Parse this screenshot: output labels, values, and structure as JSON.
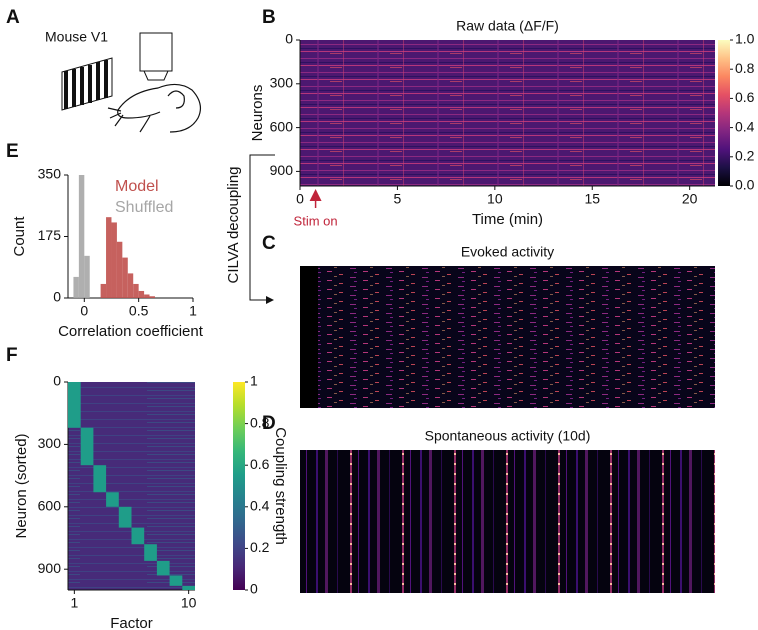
{
  "panel_labels": [
    "A",
    "B",
    "C",
    "D",
    "E",
    "F"
  ],
  "schematic_label": "Mouse V1",
  "decoupling_label": "CILVA decoupling",
  "chart_data": [
    {
      "type": "heatmap",
      "title": "Raw data (ΔF/F)",
      "xlabel": "Time (min)",
      "ylabel": "Neurons",
      "xlim": [
        0,
        21.3
      ],
      "xticks": [
        0,
        5,
        10,
        15,
        20
      ],
      "ylim": [
        0,
        1000
      ],
      "yticks": [
        0,
        300,
        600,
        900
      ],
      "colormap": "magma",
      "clim": [
        0,
        1
      ],
      "cticks": [
        {
          "value": 0,
          "label": "0.0"
        },
        {
          "value": 0.2,
          "label": "0.2"
        },
        {
          "value": 0.4,
          "label": "0.4"
        },
        {
          "value": 0.6,
          "label": "0.6"
        },
        {
          "value": 0.8,
          "label": "0.8"
        },
        {
          "value": 1,
          "label": "1.0"
        }
      ],
      "annotation": {
        "text": "Stim on",
        "x": 0.8,
        "color": "#c0243a"
      }
    },
    {
      "type": "heatmap",
      "title": "Evoked activity",
      "colormap": "magma"
    },
    {
      "type": "heatmap",
      "title": "Spontaneous activity (10d)",
      "colormap": "magma"
    },
    {
      "type": "histogram",
      "xlabel": "Correlation coefficient",
      "ylabel": "Count",
      "bins": [
        -0.1,
        -0.05,
        0,
        0.05,
        0.1,
        0.15,
        0.2,
        0.25,
        0.3,
        0.35,
        0.4,
        0.45,
        0.5,
        0.55,
        0.6,
        0.65
      ],
      "series": [
        {
          "name": "Model",
          "color": "#c0504d",
          "values": [
            0,
            0,
            0,
            0,
            0,
            40,
            230,
            215,
            160,
            115,
            70,
            40,
            20,
            10,
            5
          ]
        },
        {
          "name": "Shuffled",
          "color": "#a6a6a6",
          "values": [
            60,
            350,
            120,
            0,
            0,
            0,
            0,
            0,
            0,
            0,
            0,
            0,
            0,
            0,
            0
          ]
        }
      ],
      "xlim": [
        -0.15,
        1
      ],
      "xticks": [
        0,
        0.5,
        1
      ],
      "ylim": [
        0,
        350
      ],
      "yticks": [
        0,
        175,
        350
      ]
    },
    {
      "type": "heatmap",
      "xlabel": "Factor",
      "ylabel": "Neuron (sorted)",
      "xlim": [
        0.5,
        10.5
      ],
      "xticks": [
        1,
        10
      ],
      "ylim": [
        0,
        1000
      ],
      "yticks": [
        0,
        300,
        600,
        900
      ],
      "colormap": "viridis",
      "clim": [
        0,
        1
      ],
      "cticks": [
        0,
        0.2,
        0.4,
        0.6,
        0.8,
        1
      ],
      "colorbar_label": "Coupling strength",
      "values": [
        220,
        180,
        130,
        70,
        100,
        80,
        80,
        70,
        50,
        20
      ],
      "block_value": 0.55,
      "background_value": 0.12
    }
  ]
}
